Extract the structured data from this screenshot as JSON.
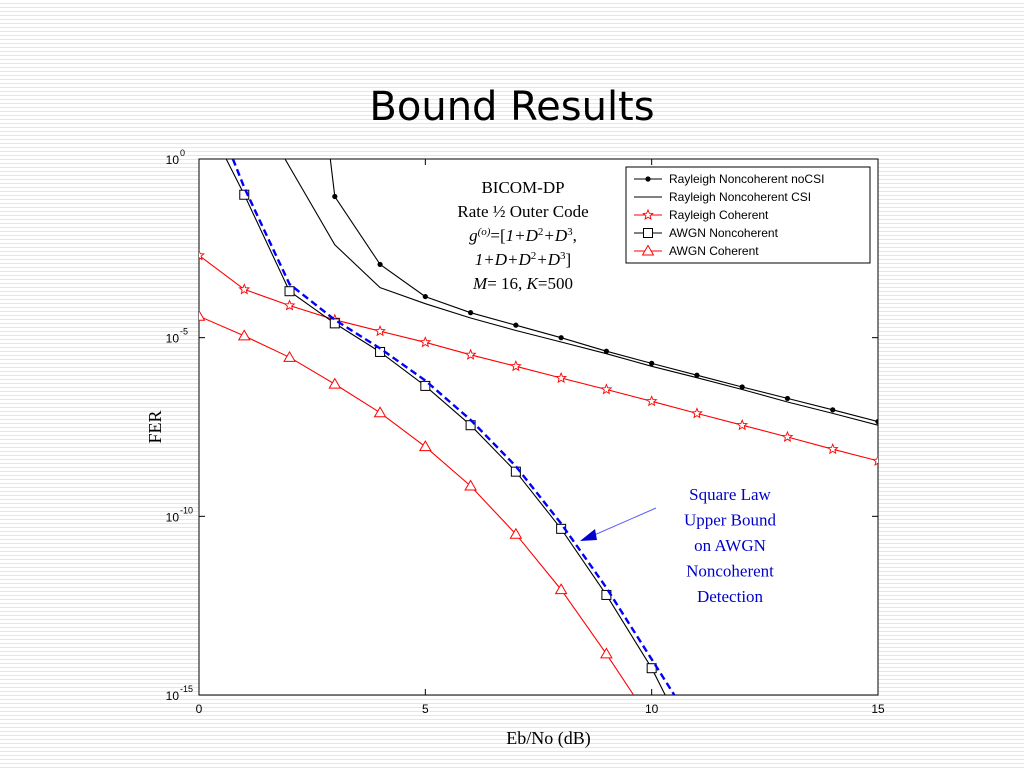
{
  "slide": {
    "title": "Bound Results"
  },
  "chart_data": {
    "type": "line",
    "title": "",
    "xlabel": "Eb/No  (dB)",
    "ylabel": "FER",
    "xlim": [
      0,
      15
    ],
    "ylim_log10": [
      -15,
      0
    ],
    "yscale": "log",
    "grid": false,
    "x_ticks": [
      "0",
      "5",
      "10",
      "15"
    ],
    "y_ticks": [
      {
        "base": "10",
        "exp": "0"
      },
      {
        "base": "10",
        "exp": "-5"
      },
      {
        "base": "10",
        "exp": "-10"
      },
      {
        "base": "10",
        "exp": "-15"
      }
    ],
    "legend_position": "top-right",
    "series": [
      {
        "name": "Rayleigh Noncoherent noCSI",
        "color": "#000000",
        "marker": "dot",
        "x": [
          2.9,
          3,
          4,
          5,
          6,
          7,
          8,
          9,
          10,
          11,
          12,
          13,
          14,
          15
        ],
        "y_log10": [
          0,
          -1.05,
          -2.95,
          -3.85,
          -4.3,
          -4.65,
          -5.0,
          -5.38,
          -5.72,
          -6.05,
          -6.38,
          -6.7,
          -7.02,
          -7.35
        ]
      },
      {
        "name": "Rayleigh Noncoherent CSI",
        "color": "#000000",
        "marker": "none",
        "x": [
          1.9,
          3,
          4,
          5,
          6,
          7,
          8,
          9,
          10,
          11,
          12,
          13,
          14,
          15
        ],
        "y_log10": [
          0,
          -2.4,
          -3.6,
          -4.05,
          -4.45,
          -4.8,
          -5.12,
          -5.45,
          -5.8,
          -6.12,
          -6.45,
          -6.8,
          -7.12,
          -7.45
        ]
      },
      {
        "name": "Rayleigh Coherent",
        "color": "#ff0000",
        "marker": "star",
        "x": [
          0,
          1,
          2,
          3,
          4,
          5,
          6,
          7,
          8,
          9,
          10,
          11,
          12,
          13,
          14,
          15
        ],
        "y_log10": [
          -2.7,
          -3.65,
          -4.1,
          -4.5,
          -4.82,
          -5.13,
          -5.48,
          -5.8,
          -6.13,
          -6.45,
          -6.78,
          -7.12,
          -7.45,
          -7.78,
          -8.12,
          -8.45
        ]
      },
      {
        "name": "AWGN Noncoherent",
        "color": "#000000",
        "marker": "square",
        "x": [
          0.6,
          1,
          2,
          3,
          4,
          5,
          6,
          7,
          8,
          9,
          10,
          10.3
        ],
        "y_log10": [
          0,
          -1.0,
          -3.7,
          -4.6,
          -5.4,
          -6.35,
          -7.45,
          -8.75,
          -10.35,
          -12.2,
          -14.25,
          -15
        ]
      },
      {
        "name": "AWGN Coherent",
        "color": "#ff0000",
        "marker": "triangle",
        "x": [
          0,
          1,
          2,
          3,
          4,
          5,
          6,
          7,
          8,
          9,
          9.6
        ],
        "y_log10": [
          -4.4,
          -4.95,
          -5.55,
          -6.3,
          -7.1,
          -8.05,
          -9.15,
          -10.5,
          -12.05,
          -13.85,
          -15
        ]
      },
      {
        "name": "",
        "color": "#0000ff",
        "marker": "none",
        "dashed": true,
        "x": [
          0.75,
          1,
          2,
          3,
          4,
          5,
          6,
          7,
          8,
          9,
          10,
          10.5
        ],
        "y_log10": [
          0,
          -0.8,
          -3.5,
          -4.5,
          -5.3,
          -6.2,
          -7.3,
          -8.6,
          -10.2,
          -12.0,
          -14.0,
          -15
        ]
      }
    ],
    "annotations": {
      "code_box": [
        {
          "parts": [
            {
              "t": "BICOM-DP"
            }
          ]
        },
        {
          "parts": [
            {
              "t": "Rate ½ Outer Code"
            }
          ]
        },
        {
          "parts": [
            {
              "t": "g",
              "i": true
            },
            {
              "t": "(o)",
              "i": true,
              "sup": true
            },
            {
              "t": "=["
            },
            {
              "t": "1+D",
              "i": true
            },
            {
              "t": "2",
              "sup": true
            },
            {
              "t": "+D",
              "i": true
            },
            {
              "t": "3",
              "sup": true
            },
            {
              "t": ","
            }
          ]
        },
        {
          "parts": [
            {
              "t": "1+D+D",
              "i": true
            },
            {
              "t": "2",
              "sup": true
            },
            {
              "t": "+D",
              "i": true
            },
            {
              "t": "3",
              "sup": true
            },
            {
              "t": "]"
            }
          ]
        },
        {
          "parts": [
            {
              "t": "M",
              "i": true
            },
            {
              "t": "= 16, "
            },
            {
              "t": "K",
              "i": true
            },
            {
              "t": "=500"
            }
          ]
        }
      ],
      "square_law": {
        "lines": [
          "Square Law",
          "Upper Bound",
          "on AWGN",
          "Noncoherent",
          "Detection"
        ],
        "color": "#0000cc"
      }
    }
  }
}
